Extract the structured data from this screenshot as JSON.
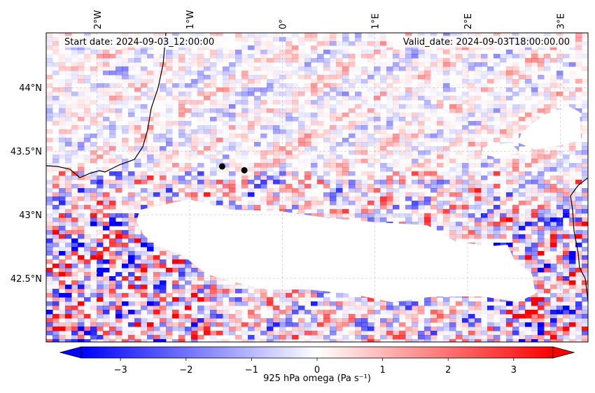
{
  "chart_data": {
    "type": "heatmap",
    "title": "",
    "annotations": {
      "start_date": "Start date: 2024-09-03_12:00:00",
      "valid_date": "Valid_date: 2024-09-03T18:00:00.00"
    },
    "lon_ticks": [
      "2°W",
      "1°W",
      "0°",
      "1°E",
      "2°E",
      "3°E"
    ],
    "lat_ticks": [
      "44°N",
      "43.5°N",
      "43°N",
      "42.5°N"
    ],
    "lon_values": [
      -2,
      -1,
      0,
      1,
      2,
      3
    ],
    "lat_values": [
      44,
      43.5,
      43,
      42.5
    ],
    "xlim": [
      -2.55,
      3.3
    ],
    "ylim": [
      42.0,
      44.43
    ],
    "grid": true,
    "colormap": "bwr",
    "colors": {
      "low": "#0000ff",
      "mid": "#ffffff",
      "high": "#ff0000",
      "masked": "#ffffff",
      "coastline": "#000000"
    },
    "colorbar": {
      "label": "925 hPa omega (Pa s⁻¹)",
      "range": [
        -3.6,
        3.6
      ],
      "ticks": [
        "−3",
        "−2",
        "−1",
        "0",
        "1",
        "2",
        "3"
      ],
      "tick_values": [
        -3,
        -2,
        -1,
        0,
        1,
        2,
        3
      ],
      "extend": "both"
    },
    "markers": [
      {
        "lon": -0.65,
        "lat": 43.38
      },
      {
        "lon": -0.41,
        "lat": 43.35
      }
    ]
  }
}
